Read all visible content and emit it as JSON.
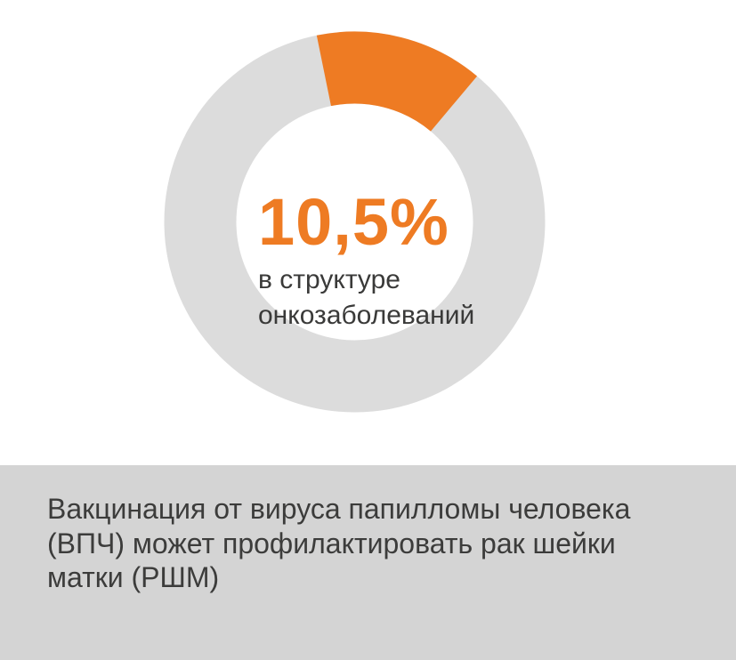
{
  "chart_data": {
    "type": "donut",
    "values": [
      10.5,
      89.5
    ],
    "unit": "%",
    "segment_color": "#EE7B23",
    "remainder_color": "#DCDCDC",
    "center_value": "10,5%",
    "center_caption_lines": [
      "в структуре",
      "онкозаболеваний"
    ],
    "arc_start_deg": -11.5,
    "arc_end_deg": 40,
    "inner_radius_ratio": 0.62,
    "legend_position": "none",
    "grid": false
  },
  "footer": {
    "background": "#D4D4D4",
    "text_color": "#3C3C3B",
    "lines": [
      "Вакцинация от вируса папилломы человека",
      "(ВПЧ) может профилактировать рак шейки",
      "матки (РШМ)"
    ]
  },
  "colors": {
    "accent_orange": "#EE7B23",
    "donut_gray": "#DCDCDC",
    "footer_gray": "#D4D4D4",
    "text_dark": "#3C3C3B"
  }
}
